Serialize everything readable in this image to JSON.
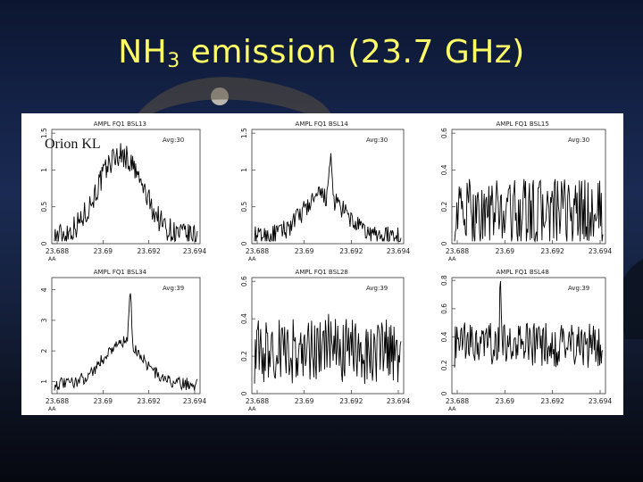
{
  "slide": {
    "title_main": "NH",
    "title_sub": "3",
    "title_rest": " emission (23.7 GHz)",
    "colors": {
      "background": "#142247",
      "title": "#ffff66",
      "figure_bg": "#ffffff"
    }
  },
  "figure": {
    "annotation": "Orion KL"
  },
  "chart_data": [
    {
      "type": "line",
      "title": "AMPL FQ1 BSL13",
      "avg_label": "Avg:30",
      "x_unit_label": "AA",
      "xticks": [
        "23.688",
        "23.69",
        "23.692",
        "23.694"
      ],
      "yticks": [
        "0",
        "0.5",
        "1",
        "1.5"
      ],
      "ylim": [
        0,
        1.55
      ],
      "peak_x": 0.46,
      "peak_height": 0.82,
      "profile": "broad",
      "noise": 0.14,
      "baseline": 0.06
    },
    {
      "type": "line",
      "title": "AMPL FQ1 BSL14",
      "avg_label": "Avg:30",
      "x_unit_label": "AA",
      "xticks": [
        "23.688",
        "23.69",
        "23.692",
        "23.694"
      ],
      "yticks": [
        "0",
        "0.5",
        "1",
        "1.5"
      ],
      "ylim": [
        0,
        1.55
      ],
      "peak_x": 0.47,
      "peak_height": 0.74,
      "profile": "spike-on-broad",
      "noise": 0.1,
      "baseline": 0.06
    },
    {
      "type": "line",
      "title": "AMPL FQ1 BSL15",
      "avg_label": "Avg:30",
      "x_unit_label": "AA",
      "xticks": [
        "23.688",
        "23.69",
        "23.692",
        "23.694"
      ],
      "yticks": [
        "0",
        "0.2",
        "0.4",
        "0.6"
      ],
      "ylim": [
        0,
        0.62
      ],
      "peak_x": 0.36,
      "peak_height": 0.55,
      "profile": "noise",
      "noise": 0.35,
      "baseline": 0.18
    },
    {
      "type": "line",
      "title": "AMPL FQ1 BSL34",
      "avg_label": "Avg:39",
      "x_unit_label": "AA",
      "xticks": [
        "23.688",
        "23.69",
        "23.692",
        "23.694"
      ],
      "yticks": [
        "1",
        "2",
        "3",
        "4"
      ],
      "ylim": [
        0.6,
        4.4
      ],
      "peak_x": 0.48,
      "peak_height": 0.86,
      "profile": "spike-on-broad",
      "noise": 0.06,
      "baseline": 0.08
    },
    {
      "type": "line",
      "title": "AMPL FQ1 BSL28",
      "avg_label": "Avg:39",
      "x_unit_label": "AA",
      "xticks": [
        "23.688",
        "23.69",
        "23.692",
        "23.694"
      ],
      "yticks": [
        "0",
        "0.2",
        "0.4",
        "0.6"
      ],
      "ylim": [
        0,
        0.62
      ],
      "peak_x": 0.5,
      "peak_height": 0.55,
      "profile": "noise",
      "noise": 0.33,
      "baseline": 0.28
    },
    {
      "type": "line",
      "title": "AMPL FQ1 BSL48",
      "avg_label": "Avg:39",
      "x_unit_label": "AA",
      "xticks": [
        "23.688",
        "23.69",
        "23.692",
        "23.694"
      ],
      "yticks": [
        "0",
        "0.2",
        "0.4",
        "0.6",
        "0.8"
      ],
      "ylim": [
        0,
        0.82
      ],
      "peak_x": 0.31,
      "peak_height": 0.88,
      "profile": "spike-on-noise",
      "noise": 0.26,
      "baseline": 0.3
    }
  ]
}
